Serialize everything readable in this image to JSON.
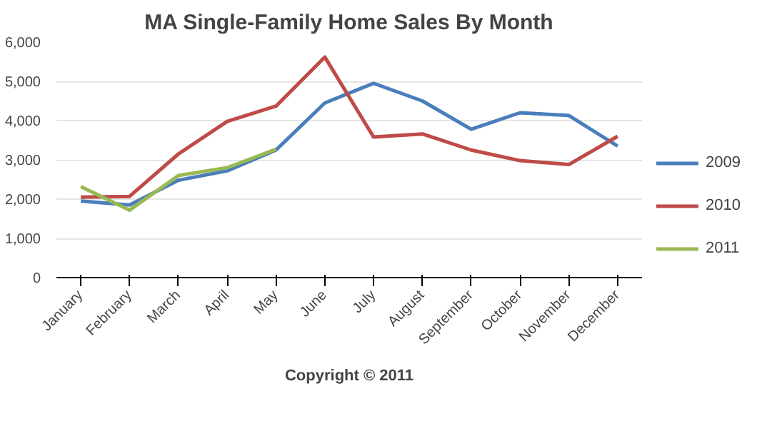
{
  "chart_data": {
    "type": "line",
    "title": "MA Single-Family Home Sales By Month",
    "categories": [
      "January",
      "February",
      "March",
      "April",
      "May",
      "June",
      "July",
      "August",
      "September",
      "October",
      "November",
      "December"
    ],
    "series": [
      {
        "name": "2009",
        "color": "#4a7ebb",
        "values": [
          1950,
          1850,
          2480,
          2720,
          3250,
          4450,
          4950,
          4500,
          3780,
          4200,
          4130,
          3350
        ]
      },
      {
        "name": "2010",
        "color": "#be4b48",
        "values": [
          2050,
          2070,
          3150,
          3980,
          4370,
          5620,
          3580,
          3660,
          3250,
          2980,
          2880,
          3600
        ]
      },
      {
        "name": "2011",
        "color": "#98b954",
        "values": [
          2320,
          1720,
          2600,
          2800,
          3270,
          null,
          null,
          null,
          null,
          null,
          null,
          null
        ]
      }
    ],
    "ylim": [
      0,
      6000
    ],
    "yticks": [
      {
        "value": 0,
        "label": "0"
      },
      {
        "value": 1000,
        "label": "1,000"
      },
      {
        "value": 2000,
        "label": "2,000"
      },
      {
        "value": 3000,
        "label": "3,000"
      },
      {
        "value": 4000,
        "label": "4,000"
      },
      {
        "value": 5000,
        "label": "5,000"
      },
      {
        "value": 6000,
        "label": "6,000"
      }
    ],
    "grid": "y",
    "legend": "right",
    "marker": "none",
    "line_style": "solid",
    "annotations": [
      "Copyright © 2011"
    ]
  }
}
